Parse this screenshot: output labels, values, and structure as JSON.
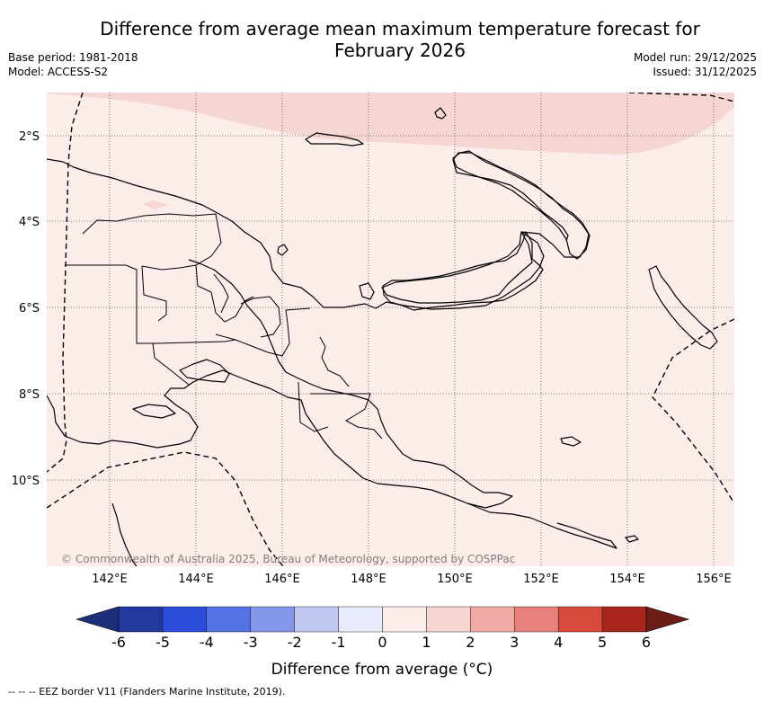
{
  "title_line1": "Difference from average mean maximum temperature forecast for",
  "title_line2": "February 2026",
  "base_period": "Base period: 1981-2018",
  "model": "Model: ACCESS-S2",
  "model_run": "Model run: 29/12/2025",
  "issued": "Issued: 31/12/2025",
  "lat_labels": [
    "2°S",
    "4°S",
    "6°S",
    "8°S",
    "10°S"
  ],
  "lon_labels": [
    "142°E",
    "144°E",
    "146°E",
    "148°E",
    "150°E",
    "152°E",
    "154°E",
    "156°E"
  ],
  "copyright": "© Commonwealth of Australia 2025, Bureau of Meteorology, supported by COSPPac",
  "colorbar": {
    "ticks": [
      "-6",
      "-5",
      "-4",
      "-3",
      "-2",
      "-1",
      "0",
      "1",
      "2",
      "3",
      "4",
      "5",
      "6"
    ],
    "colors": [
      "#223a9e",
      "#2c4ddb",
      "#5572e4",
      "#8396ea",
      "#c1c9f3",
      "#e8ebfb",
      "#fcecea",
      "#f6d6d3",
      "#efaba4",
      "#e6827b",
      "#d94a3e",
      "#a9261d"
    ],
    "low_extend_color": "#1d2f7a",
    "high_extend_color": "#6e1c18",
    "label": "Difference from average (°C)"
  },
  "legend_note": "-- -- -- EEZ border V11 (Flanders Marine Institute, 2019).",
  "regions": {
    "background_color": "#fcecea",
    "warm_band_color": "#f6d6d3"
  }
}
